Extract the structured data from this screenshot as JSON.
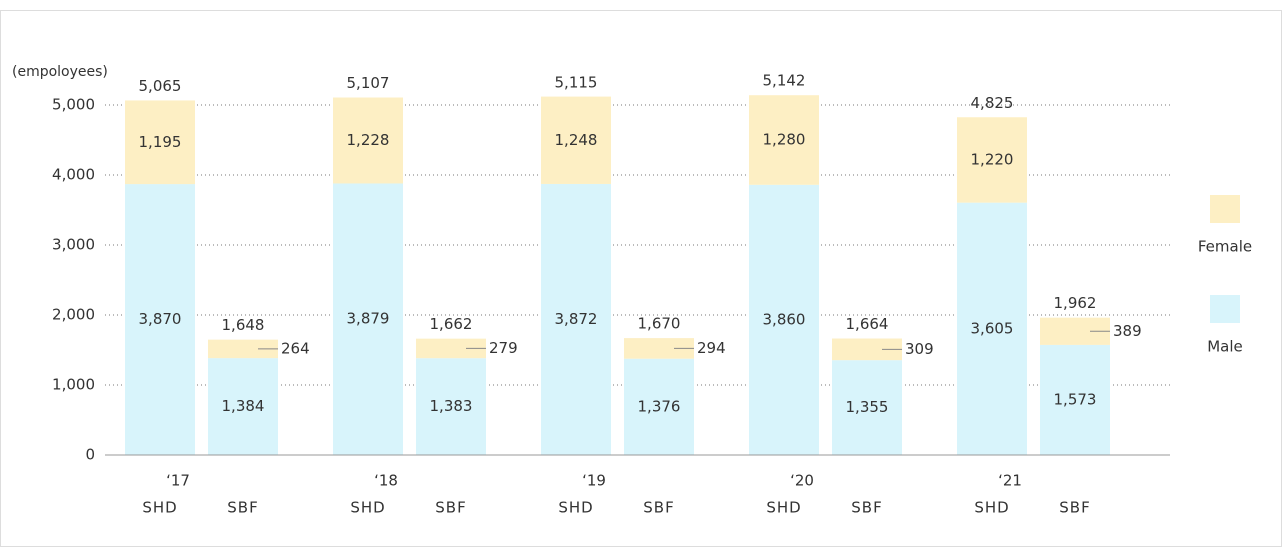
{
  "chart_data": {
    "type": "stacked-bar",
    "y_label": "(empoloyees)",
    "groups": [
      "‘17",
      "‘18",
      "‘19",
      "‘20",
      "‘21"
    ],
    "categories": [
      "SHD",
      "SBF",
      "SHD",
      "SBF",
      "SHD",
      "SBF",
      "SHD",
      "SBF",
      "SHD",
      "SBF"
    ],
    "series": [
      {
        "name": "Male",
        "color": "#d8f4fb",
        "values": [
          3870,
          1384,
          3879,
          1383,
          3872,
          1376,
          3860,
          1355,
          3605,
          1573
        ],
        "value_labels": [
          "3,870",
          "1,384",
          "3,879",
          "1,383",
          "3,872",
          "1,376",
          "3,860",
          "1,355",
          "3,605",
          "1,573"
        ]
      },
      {
        "name": "Female",
        "color": "#fdefc4",
        "values": [
          1195,
          264,
          1228,
          279,
          1248,
          294,
          1280,
          309,
          1220,
          389
        ],
        "value_labels": [
          "1,195",
          "264",
          "1,228",
          "279",
          "1,248",
          "294",
          "1,280",
          "309",
          "1,220",
          "389"
        ]
      }
    ],
    "totals": [
      5065,
      1648,
      5107,
      1662,
      5115,
      1670,
      5142,
      1664,
      4825,
      1962
    ],
    "total_labels": [
      "5,065",
      "1,648",
      "5,107",
      "1,662",
      "5,115",
      "1,670",
      "5,142",
      "1,664",
      "4,825",
      "1,962"
    ],
    "ylim": [
      0,
      5000
    ],
    "yticks": [
      0,
      {
        "value": 1000,
        "label": "1,000"
      },
      {
        "value": 2000,
        "label": "2,000"
      },
      {
        "value": 3000,
        "label": "3,000"
      },
      {
        "value": 4000,
        "label": "4,000"
      },
      {
        "value": 5000,
        "label": "5,000"
      }
    ],
    "grid": true,
    "legend": "right"
  }
}
